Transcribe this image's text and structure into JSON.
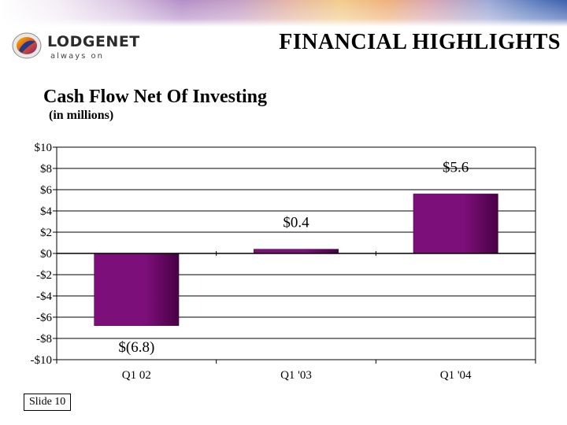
{
  "header": {
    "title": "FINANCIAL HIGHLIGHTS"
  },
  "logo": {
    "name": "LODGENET",
    "tagline": "always on"
  },
  "footer": {
    "slide_label": "Slide 10"
  },
  "colors": {
    "bar": "#7d0f7a",
    "bar_dark": "#4a0046",
    "grid": "#000000"
  },
  "chart_data": {
    "type": "bar",
    "title": "Cash Flow Net Of Investing",
    "subtitle": "(in millions)",
    "categories": [
      "Q1 02",
      "Q1 '03",
      "Q1 '04"
    ],
    "values": [
      -6.8,
      0.4,
      5.6
    ],
    "data_labels": [
      "$(6.8)",
      "$0.4",
      "$5.6"
    ],
    "ylim": [
      -10,
      10
    ],
    "yticks": [
      10,
      8,
      6,
      4,
      2,
      0,
      -2,
      -4,
      -6,
      -8,
      -10
    ],
    "ytick_labels": [
      "$10",
      "$8",
      "$6",
      "$4",
      "$2",
      "$0",
      "-$2",
      "-$4",
      "-$6",
      "-$8",
      "-$10"
    ],
    "grid": true,
    "legend": false
  }
}
